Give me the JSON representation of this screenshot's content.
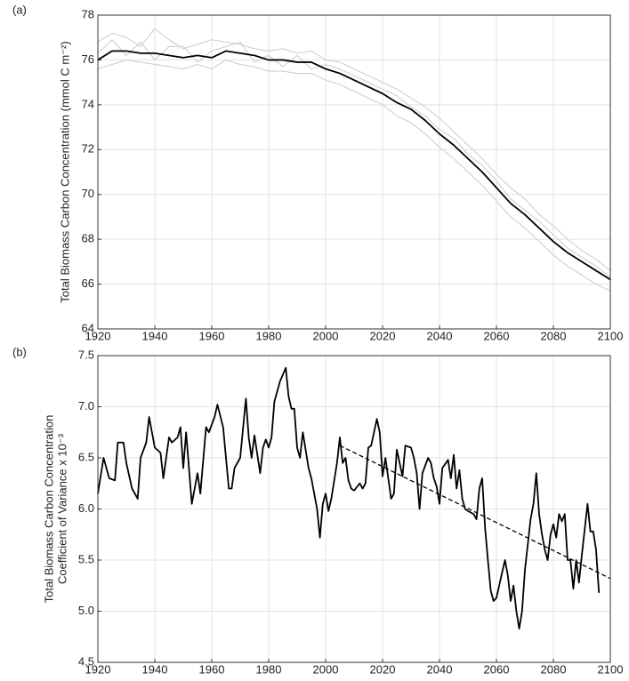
{
  "chart_data": [
    {
      "type": "line",
      "panel_label": "(a)",
      "ylabel": "Total Biomass Carbon Concentration (mmol C m⁻²)",
      "x": [
        1920,
        1925,
        1930,
        1935,
        1940,
        1945,
        1950,
        1955,
        1960,
        1965,
        1970,
        1975,
        1980,
        1985,
        1990,
        1995,
        2000,
        2005,
        2010,
        2015,
        2020,
        2025,
        2030,
        2035,
        2040,
        2045,
        2050,
        2055,
        2060,
        2065,
        2070,
        2075,
        2080,
        2085,
        2090,
        2095,
        2100
      ],
      "xlim": [
        1920,
        2100
      ],
      "xticks": [
        1920,
        1940,
        1960,
        1980,
        2000,
        2020,
        2040,
        2060,
        2080,
        2100
      ],
      "ylim": [
        64,
        78
      ],
      "yticks": [
        64,
        66,
        68,
        70,
        72,
        74,
        76,
        78
      ],
      "grid": true,
      "series": [
        {
          "color": "#cfcfcf",
          "values": [
            76.8,
            77.2,
            77.0,
            76.6,
            77.4,
            76.9,
            76.5,
            76.7,
            76.9,
            76.8,
            76.7,
            76.5,
            76.4,
            76.5,
            76.3,
            76.4,
            76.0,
            75.9,
            75.6,
            75.3,
            75.0,
            74.7,
            74.3,
            73.9,
            73.4,
            72.8,
            72.2,
            71.6,
            70.9,
            70.3,
            69.8,
            69.1,
            68.6,
            68.0,
            67.5,
            67.1,
            66.6
          ]
        },
        {
          "color": "#cfcfcf",
          "values": [
            75.6,
            75.8,
            76.0,
            75.9,
            75.8,
            75.7,
            75.6,
            75.8,
            75.6,
            76.0,
            75.8,
            75.7,
            75.5,
            75.5,
            75.4,
            75.4,
            75.1,
            74.9,
            74.6,
            74.3,
            74.0,
            73.5,
            73.2,
            72.7,
            72.1,
            71.6,
            71.0,
            70.4,
            69.7,
            69.0,
            68.5,
            67.9,
            67.3,
            66.8,
            66.4,
            66.0,
            65.7
          ]
        },
        {
          "color": "#cfcfcf",
          "values": [
            76.3,
            76.9,
            76.2,
            76.8,
            76.0,
            76.6,
            76.6,
            75.9,
            76.4,
            76.6,
            76.8,
            75.9,
            76.2,
            75.7,
            76.2,
            75.6,
            75.8,
            75.6,
            75.3,
            75.0,
            74.7,
            74.4,
            73.9,
            73.5,
            72.9,
            72.5,
            71.8,
            71.3,
            70.6,
            69.8,
            69.3,
            68.8,
            68.2,
            67.6,
            67.2,
            66.8,
            66.3
          ]
        },
        {
          "color": "#000000",
          "values": [
            76.0,
            76.4,
            76.4,
            76.3,
            76.3,
            76.2,
            76.1,
            76.2,
            76.1,
            76.4,
            76.3,
            76.2,
            76.0,
            76.0,
            75.9,
            75.9,
            75.6,
            75.4,
            75.1,
            74.8,
            74.5,
            74.1,
            73.8,
            73.3,
            72.7,
            72.2,
            71.6,
            71.0,
            70.3,
            69.6,
            69.1,
            68.5,
            67.9,
            67.4,
            67.0,
            66.6,
            66.2
          ]
        }
      ]
    },
    {
      "type": "line",
      "panel_label": "(b)",
      "ylabel": [
        "Total Biomass Carbon Concentration",
        "Coefficient of Variance x 10⁻³"
      ],
      "x": [
        1920,
        1922,
        1924,
        1926,
        1927,
        1929,
        1930,
        1932,
        1934,
        1935,
        1937,
        1938,
        1940,
        1942,
        1943,
        1945,
        1946,
        1948,
        1949,
        1950,
        1951,
        1953,
        1955,
        1956,
        1958,
        1959,
        1961,
        1962,
        1964,
        1965,
        1966,
        1967,
        1968,
        1970,
        1972,
        1973,
        1974,
        1975,
        1977,
        1978,
        1979,
        1980,
        1981,
        1982,
        1984,
        1986,
        1987,
        1988,
        1989,
        1990,
        1991,
        1992,
        1994,
        1995,
        1997,
        1998,
        1999,
        2000,
        2001,
        2002,
        2004,
        2005,
        2006,
        2007,
        2008,
        2009,
        2010,
        2012,
        2013,
        2014,
        2015,
        2016,
        2018,
        2019,
        2020,
        2021,
        2023,
        2024,
        2025,
        2026,
        2027,
        2028,
        2030,
        2031,
        2032,
        2033,
        2034,
        2036,
        2037,
        2038,
        2039,
        2040,
        2041,
        2043,
        2044,
        2045,
        2046,
        2047,
        2048,
        2049,
        2050,
        2052,
        2053,
        2054,
        2055,
        2056,
        2057,
        2058,
        2059,
        2060,
        2062,
        2063,
        2064,
        2065,
        2066,
        2067,
        2068,
        2069,
        2070,
        2072,
        2073,
        2074,
        2075,
        2076,
        2077,
        2078,
        2079,
        2080,
        2081,
        2082,
        2083,
        2084,
        2085,
        2086,
        2087,
        2088,
        2089,
        2090,
        2091,
        2092,
        2093,
        2094,
        2095,
        2096
      ],
      "xlim": [
        1920,
        2100
      ],
      "xticks": [
        1920,
        1940,
        1960,
        1980,
        2000,
        2020,
        2040,
        2060,
        2080,
        2100
      ],
      "ylim": [
        4.5,
        7.5
      ],
      "yticks": [
        4.5,
        {
          "value": 5,
          "label": "5.0"
        },
        5.5,
        {
          "value": 6,
          "label": "6.0"
        },
        6.5,
        {
          "value": 7,
          "label": "7.0"
        },
        7.5
      ],
      "grid": true,
      "series": [
        {
          "color": "#000000",
          "values": [
            6.15,
            6.5,
            6.3,
            6.28,
            6.65,
            6.65,
            6.45,
            6.2,
            6.1,
            6.5,
            6.65,
            6.9,
            6.6,
            6.55,
            6.3,
            6.7,
            6.65,
            6.7,
            6.8,
            6.4,
            6.75,
            6.05,
            6.35,
            6.15,
            6.8,
            6.75,
            6.9,
            7.02,
            6.8,
            6.5,
            6.2,
            6.2,
            6.4,
            6.5,
            7.08,
            6.7,
            6.5,
            6.72,
            6.35,
            6.6,
            6.68,
            6.6,
            6.7,
            7.05,
            7.25,
            7.38,
            7.1,
            6.98,
            6.98,
            6.6,
            6.5,
            6.75,
            6.4,
            6.3,
            6.0,
            5.72,
            6.05,
            6.15,
            5.98,
            6.1,
            6.45,
            6.7,
            6.45,
            6.5,
            6.28,
            6.2,
            6.18,
            6.25,
            6.2,
            6.25,
            6.6,
            6.62,
            6.88,
            6.75,
            6.32,
            6.5,
            6.1,
            6.15,
            6.58,
            6.45,
            6.32,
            6.62,
            6.6,
            6.5,
            6.35,
            6.0,
            6.35,
            6.5,
            6.45,
            6.3,
            6.22,
            6.05,
            6.4,
            6.48,
            6.3,
            6.53,
            6.2,
            6.38,
            6.1,
            6.0,
            5.98,
            5.95,
            5.9,
            6.2,
            6.3,
            5.82,
            5.5,
            5.2,
            5.1,
            5.13,
            5.38,
            5.5,
            5.35,
            5.1,
            5.25,
            5.0,
            4.83,
            5.0,
            5.4,
            5.9,
            6.05,
            6.35,
            5.95,
            5.75,
            5.6,
            5.5,
            5.75,
            5.85,
            5.72,
            5.95,
            5.88,
            5.95,
            5.5,
            5.5,
            5.22,
            5.5,
            5.28,
            5.55,
            5.8,
            6.05,
            5.78,
            5.78,
            5.6,
            5.18
          ]
        },
        {
          "color": "#000000",
          "dash": true,
          "x": [
            2005,
            2100
          ],
          "values": [
            6.62,
            5.32
          ]
        }
      ]
    }
  ]
}
